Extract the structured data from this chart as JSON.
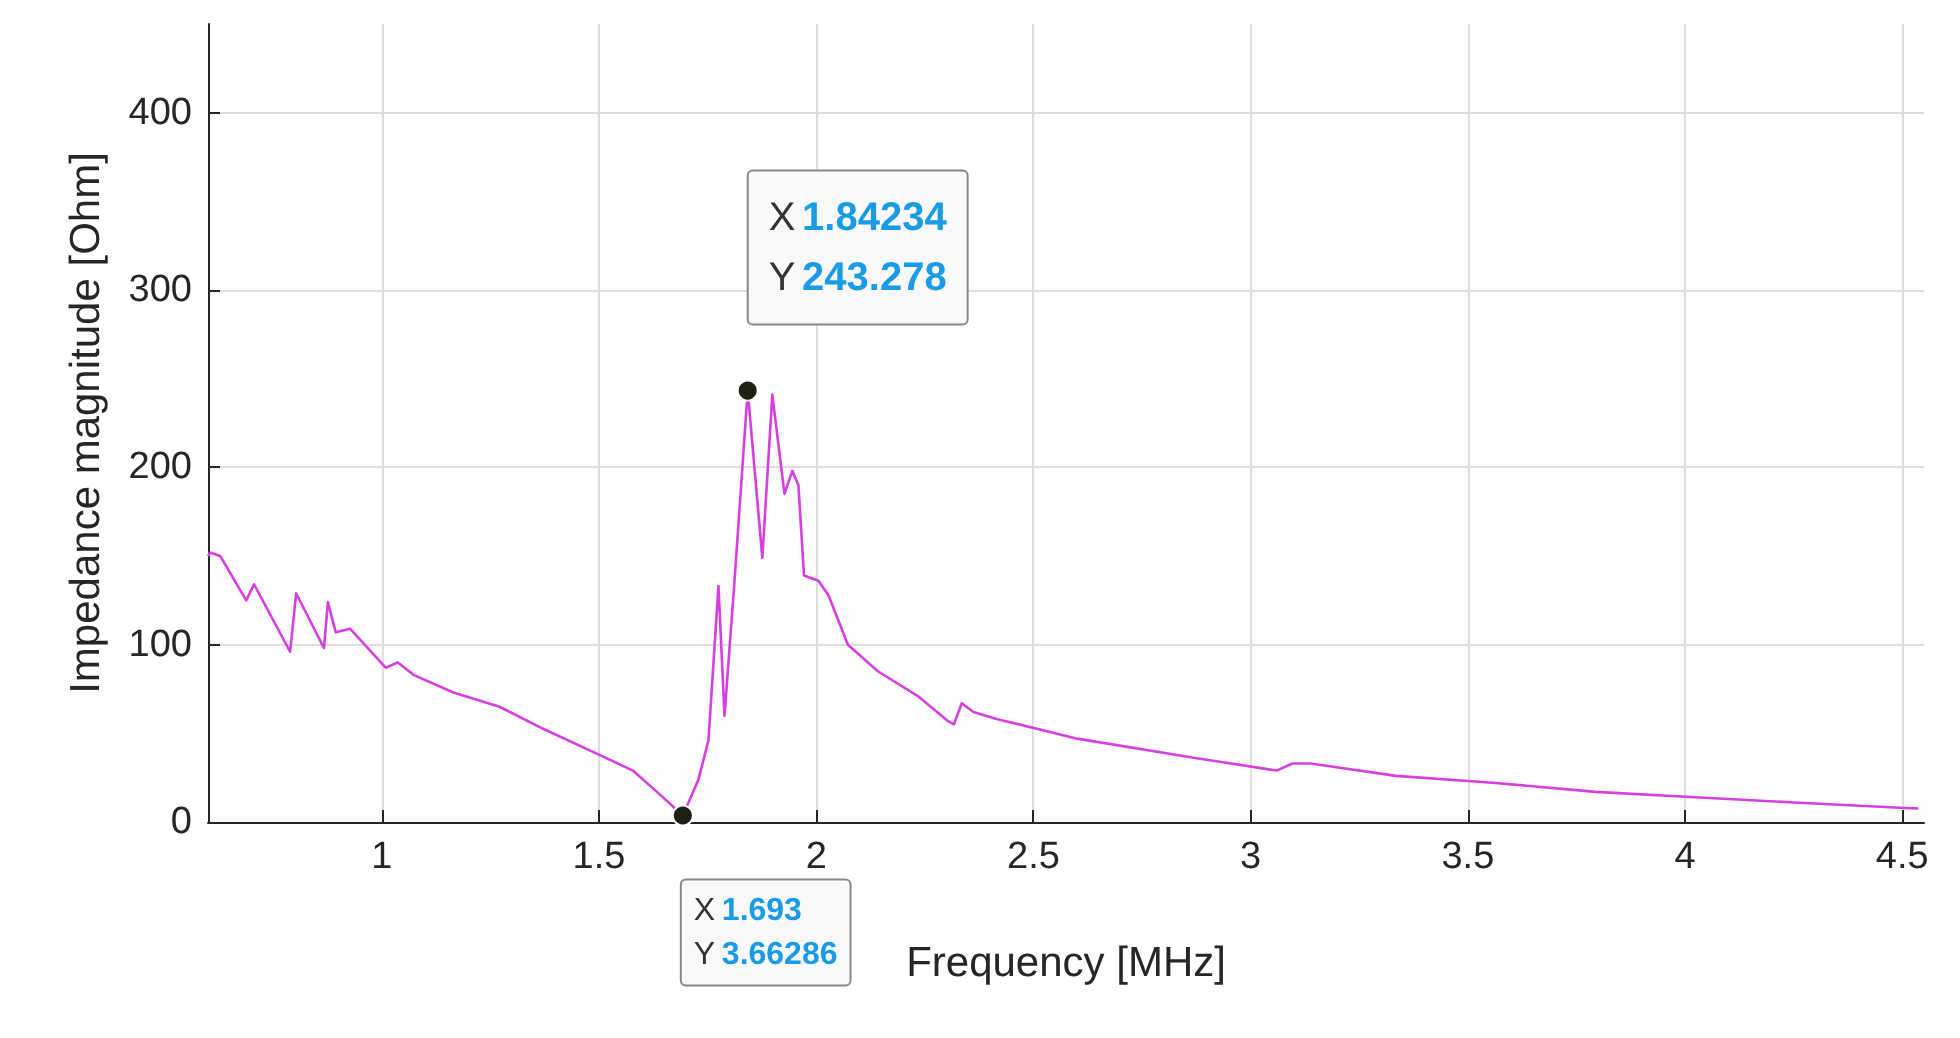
{
  "chart_data": {
    "type": "line",
    "xlabel": "Frequency [MHz]",
    "ylabel": "Impedance magnitude [Ohm]",
    "x": [
      0.6,
      0.605,
      0.628,
      0.688,
      0.706,
      0.789,
      0.803,
      0.867,
      0.876,
      0.894,
      0.927,
      1.009,
      1.037,
      1.073,
      1.165,
      1.271,
      1.376,
      1.5,
      1.578,
      1.638,
      1.693,
      1.729,
      1.752,
      1.775,
      1.789,
      1.812,
      1.84234,
      1.876,
      1.899,
      1.927,
      1.945,
      1.959,
      1.972,
      2.005,
      2.028,
      2.073,
      2.142,
      2.234,
      2.303,
      2.317,
      2.335,
      2.362,
      2.417,
      2.601,
      2.876,
      3.06,
      3.096,
      3.138,
      3.335,
      3.564,
      3.794,
      4.023,
      4.252,
      4.495,
      4.537
    ],
    "series": [
      {
        "color": "#d63fe0",
        "values": [
          150,
          152,
          150,
          125,
          134,
          96,
          129,
          98,
          124,
          107,
          109,
          87,
          90,
          83,
          73,
          65,
          52,
          38,
          29,
          16,
          3.66286,
          24,
          46,
          133,
          60,
          136,
          243.278,
          149,
          241,
          185,
          198,
          190,
          139,
          136,
          128,
          100,
          85,
          71,
          57,
          55,
          67,
          62,
          58,
          47,
          36,
          29,
          33,
          33,
          26,
          22,
          17,
          14,
          11,
          8,
          7.6
        ]
      }
    ],
    "xlim": [
      0.6,
      4.55
    ],
    "ylim": [
      0,
      450
    ],
    "xticks": [
      1,
      1.5,
      2,
      2.5,
      3,
      3.5,
      4,
      4.5
    ],
    "yticks": [
      0,
      100,
      200,
      300,
      400
    ],
    "grid": true,
    "annotations": [
      {
        "text": "X 1.84234\nY 243.278",
        "x": 1.84234,
        "y": 243.278
      },
      {
        "text": "X 1.693\nY 3.66286",
        "x": 1.693,
        "y": 3.66286
      }
    ]
  }
}
